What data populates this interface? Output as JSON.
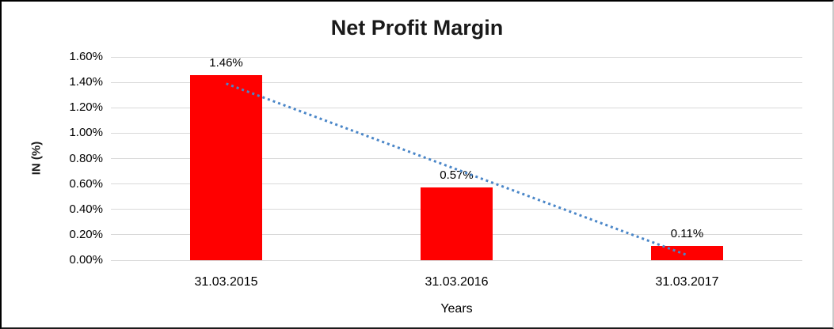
{
  "chart_data": {
    "type": "bar",
    "title": "Net Profit Margin",
    "xlabel": "Years",
    "ylabel": "IN (%)",
    "categories": [
      "31.03.2015",
      "31.03.2016",
      "31.03.2017"
    ],
    "values": [
      1.46,
      0.57,
      0.11
    ],
    "data_labels": [
      "1.46%",
      "0.57%",
      "0.11%"
    ],
    "ylim": [
      0,
      1.6
    ],
    "ytick_step": 0.2,
    "ytick_labels": [
      "0.00%",
      "0.20%",
      "0.40%",
      "0.60%",
      "0.80%",
      "1.00%",
      "1.20%",
      "1.40%",
      "1.60%"
    ],
    "grid": true,
    "legend": "none",
    "bar_color": "#FF0000",
    "gridline_color": "#D9D9D9",
    "trendline": {
      "type": "linear",
      "style": "dotted",
      "color": "#4A86C8",
      "start_value": 1.39,
      "end_value": 0.04
    }
  }
}
